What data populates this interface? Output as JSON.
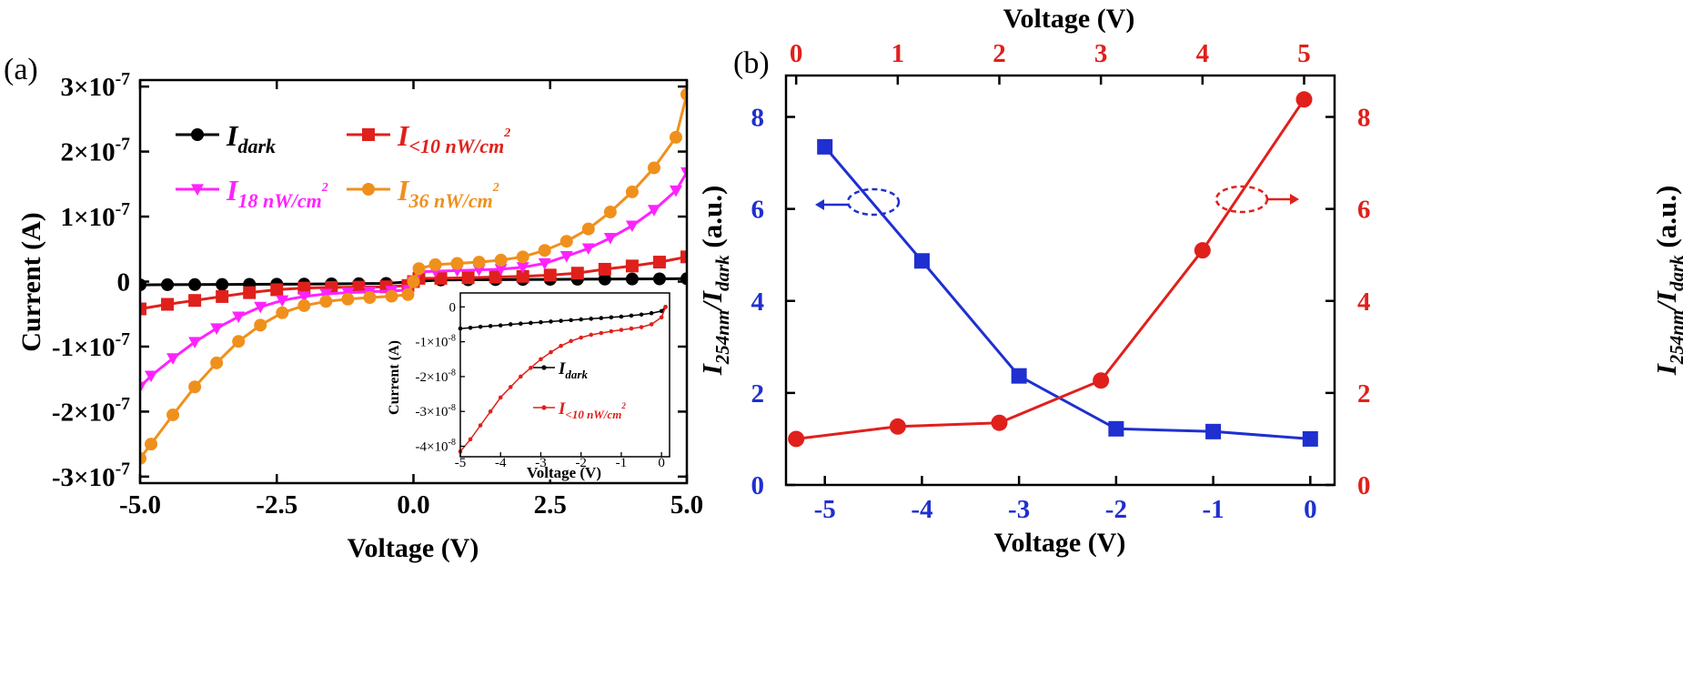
{
  "panel_a": {
    "panel_label": "(a)",
    "chart_data": {
      "type": "line",
      "xlabel": "Voltage (V)",
      "ylabel": "Current (A)",
      "xlim": [
        -5,
        5
      ],
      "ylim": [
        -3.1e-07,
        3.1e-07
      ],
      "x_ticks": [
        -5,
        -2.5,
        0,
        2.5,
        5
      ],
      "x_tick_labels": [
        "-5.0",
        "-2.5",
        "0.0",
        "2.5",
        "5.0"
      ],
      "y_ticks": [
        3e-07,
        2e-07,
        1e-07,
        0,
        -1e-07,
        -2e-07,
        -3e-07
      ],
      "y_tick_labels": [
        {
          "base": "3×10",
          "exp": "-7"
        },
        {
          "base": "2×10",
          "exp": "-7"
        },
        {
          "base": "1×10",
          "exp": "-7"
        },
        {
          "base": "0",
          "exp": ""
        },
        {
          "base": "-1×10",
          "exp": "-7"
        },
        {
          "base": "-2×10",
          "exp": "-7"
        },
        {
          "base": "-3×10",
          "exp": "-7"
        }
      ],
      "grid": false,
      "legend_position": "top-left",
      "series": [
        {
          "legend_main": "I",
          "legend_sub": "dark",
          "legend_sup": "",
          "legend_tail": "",
          "color": "#000000",
          "marker": "circle",
          "x": [
            -5,
            -4.5,
            -4,
            -3.5,
            -3,
            -2.5,
            -2,
            -1.5,
            -1,
            -0.5,
            0,
            0.5,
            1,
            1.5,
            2,
            2.5,
            3,
            3.5,
            4,
            4.5,
            5
          ],
          "y": [
            -5e-09,
            -4.8e-09,
            -4.6e-09,
            -4.4e-09,
            -4.2e-09,
            -4e-09,
            -3.8e-09,
            -3.5e-09,
            -3.2e-09,
            -2.8e-09,
            0,
            2.5e-09,
            2.8e-09,
            3e-09,
            3.2e-09,
            3.4e-09,
            3.6e-09,
            3.8e-09,
            4e-09,
            4.2e-09,
            4.5e-09
          ]
        },
        {
          "legend_main": "I",
          "legend_sub": "<10 nW/cm",
          "legend_sup": "2",
          "legend_tail": "",
          "color": "#e0201b",
          "marker": "square",
          "x": [
            -5,
            -4.5,
            -4,
            -3.5,
            -3,
            -2.5,
            -2,
            -1.5,
            -1,
            -0.5,
            -0.1,
            0,
            0.1,
            0.5,
            1,
            1.5,
            2,
            2.5,
            3,
            3.5,
            4,
            4.5,
            5
          ],
          "y": [
            -4.2e-08,
            -3.5e-08,
            -2.9e-08,
            -2.3e-08,
            -1.7e-08,
            -1.25e-08,
            -1e-08,
            -9e-09,
            -8.5e-09,
            -8e-09,
            -6e-09,
            0,
            5e-09,
            5e-09,
            6e-09,
            7e-09,
            8e-09,
            1e-08,
            1.3e-08,
            1.9e-08,
            2.4e-08,
            3e-08,
            3.8e-08
          ]
        },
        {
          "legend_main": "I",
          "legend_sub": "18 nW/cm",
          "legend_sup": "2",
          "legend_tail": "",
          "color": "#ff22ff",
          "marker": "triangle-down",
          "x": [
            -5,
            -4.8,
            -4.4,
            -4,
            -3.6,
            -3.2,
            -2.8,
            -2.4,
            -2,
            -1.6,
            -1.2,
            -0.8,
            -0.4,
            -0.1,
            0,
            0.1,
            0.4,
            0.8,
            1.2,
            1.6,
            2,
            2.4,
            2.8,
            3.2,
            3.6,
            4,
            4.4,
            4.8,
            5
          ],
          "y": [
            -1.62e-07,
            -1.45e-07,
            -1.18e-07,
            -9.3e-08,
            -7.2e-08,
            -5.4e-08,
            -3.9e-08,
            -2.9e-08,
            -2.3e-08,
            -1.9e-08,
            -1.7e-08,
            -1.55e-08,
            -1.45e-08,
            -1.3e-08,
            0,
            1.5e-08,
            1.6e-08,
            1.7e-08,
            1.8e-08,
            1.9e-08,
            2.2e-08,
            2.8e-08,
            3.9e-08,
            5.1e-08,
            6.7e-08,
            8.6e-08,
            1.1e-07,
            1.4e-07,
            1.68e-07
          ]
        },
        {
          "legend_main": "I",
          "legend_sub": "36 nW/cm",
          "legend_sup": "2",
          "legend_tail": "",
          "color": "#f0901c",
          "marker": "circle",
          "x": [
            -5,
            -4.8,
            -4.4,
            -4,
            -3.6,
            -3.2,
            -2.8,
            -2.4,
            -2,
            -1.6,
            -1.2,
            -0.8,
            -0.4,
            -0.1,
            0,
            0.1,
            0.4,
            0.8,
            1.2,
            1.6,
            2,
            2.4,
            2.8,
            3.2,
            3.6,
            4,
            4.4,
            4.8,
            5
          ],
          "y": [
            -2.72e-07,
            -2.5e-07,
            -2.05e-07,
            -1.62e-07,
            -1.25e-07,
            -9.2e-08,
            -6.7e-08,
            -4.8e-08,
            -3.7e-08,
            -3.05e-08,
            -2.7e-08,
            -2.45e-08,
            -2.25e-08,
            -2e-08,
            0,
            2e-08,
            2.6e-08,
            2.8e-08,
            3e-08,
            3.3e-08,
            3.8e-08,
            4.8e-08,
            6.2e-08,
            8.1e-08,
            1.07e-07,
            1.38e-07,
            1.75e-07,
            2.22e-07,
            2.88e-07
          ]
        }
      ]
    },
    "inset": {
      "chart_data": {
        "type": "line",
        "xlabel": "Voltage (V)",
        "ylabel": "Current (A)",
        "xlim": [
          -5,
          0.2
        ],
        "ylim": [
          -4.3e-08,
          4e-09
        ],
        "x_ticks": [
          -5,
          -4,
          -3,
          -2,
          -1,
          0
        ],
        "x_tick_labels": [
          "-5",
          "-4",
          "-3",
          "-2",
          "-1",
          "0"
        ],
        "y_ticks": [
          0,
          -1e-08,
          -2e-08,
          -3e-08,
          -4e-08
        ],
        "y_tick_labels": [
          {
            "base": "0",
            "exp": ""
          },
          {
            "base": "-1×10",
            "exp": "-8"
          },
          {
            "base": "-2×10",
            "exp": "-8"
          },
          {
            "base": "-3×10",
            "exp": "-8"
          },
          {
            "base": "-4×10",
            "exp": "-8"
          }
        ],
        "grid": false,
        "legend_position": "center",
        "series": [
          {
            "legend_main": "I",
            "legend_sub": "dark",
            "legend_sup": "",
            "legend_tail": "",
            "color": "#000000",
            "marker": "dot",
            "x": [
              -5,
              -4.75,
              -4.5,
              -4.25,
              -4,
              -3.75,
              -3.5,
              -3.25,
              -3,
              -2.75,
              -2.5,
              -2.25,
              -2,
              -1.75,
              -1.5,
              -1.25,
              -1,
              -0.75,
              -0.5,
              -0.25,
              0,
              0.1
            ],
            "y": [
              -6.2e-09,
              -6e-09,
              -5.7e-09,
              -5.5e-09,
              -5.3e-09,
              -5e-09,
              -4.8e-09,
              -4.6e-09,
              -4.4e-09,
              -4.2e-09,
              -4e-09,
              -3.8e-09,
              -3.6e-09,
              -3.4e-09,
              -3.2e-09,
              -3e-09,
              -2.8e-09,
              -2.5e-09,
              -2.2e-09,
              -1.8e-09,
              -1.2e-09,
              0
            ]
          },
          {
            "legend_main": "I",
            "legend_sub": "<10 nW/cm",
            "legend_sup": "2",
            "legend_tail": "",
            "color": "#e0201b",
            "marker": "dot",
            "x": [
              -5,
              -4.75,
              -4.5,
              -4.25,
              -4,
              -3.75,
              -3.5,
              -3.25,
              -3,
              -2.75,
              -2.5,
              -2.25,
              -2,
              -1.75,
              -1.5,
              -1.25,
              -1,
              -0.75,
              -0.5,
              -0.25,
              0,
              0.1
            ],
            "y": [
              -4.15e-08,
              -3.8e-08,
              -3.4e-08,
              -3e-08,
              -2.6e-08,
              -2.3e-08,
              -2e-08,
              -1.75e-08,
              -1.5e-08,
              -1.3e-08,
              -1.12e-08,
              -9.8e-09,
              -8.8e-09,
              -8e-09,
              -7.5e-09,
              -7e-09,
              -6.6e-09,
              -6.2e-09,
              -5.8e-09,
              -5e-09,
              -3e-09,
              0
            ]
          }
        ]
      }
    }
  },
  "panel_b": {
    "panel_label": "(b)",
    "chart_data": {
      "type": "line",
      "xlabel": "Voltage (V)",
      "x2label": "Voltage (V)",
      "ylabel_main": "I",
      "ylabel_sub": "254nm",
      "ylabel_mid": "/I",
      "ylabel_sub2": "dark",
      "ylabel_tail": " (a.u.)",
      "xlim": [
        -5.4,
        0.25
      ],
      "x2lim": [
        -0.1,
        5.3
      ],
      "ylim": [
        0,
        8.9
      ],
      "x_ticks": [
        -5,
        -4,
        -3,
        -2,
        -1,
        0
      ],
      "x_tick_labels": [
        "-5",
        "-4",
        "-3",
        "-2",
        "-1",
        "0"
      ],
      "x2_ticks": [
        0,
        1,
        2,
        3,
        4,
        5
      ],
      "x2_tick_labels": [
        "0",
        "1",
        "2",
        "3",
        "4",
        "5"
      ],
      "y_ticks": [
        0,
        2,
        4,
        6,
        8
      ],
      "y_tick_labels": [
        "0",
        "2",
        "4",
        "6",
        "8"
      ],
      "grid": false,
      "axis_colors": {
        "bottom_left": "#1f2fd0",
        "top_right": "#e0201b"
      },
      "series": [
        {
          "axis": "bottom-left",
          "color": "#1f2fd0",
          "marker": "square",
          "x": [
            -5,
            -4,
            -3,
            -2,
            -1,
            0
          ],
          "y": [
            7.35,
            4.87,
            2.37,
            1.22,
            1.16,
            1.0
          ]
        },
        {
          "axis": "top-right",
          "color": "#e0201b",
          "marker": "circle",
          "x": [
            0,
            1,
            2,
            3,
            4,
            5
          ],
          "y": [
            1.0,
            1.27,
            1.35,
            2.27,
            5.1,
            8.38
          ]
        }
      ]
    }
  }
}
